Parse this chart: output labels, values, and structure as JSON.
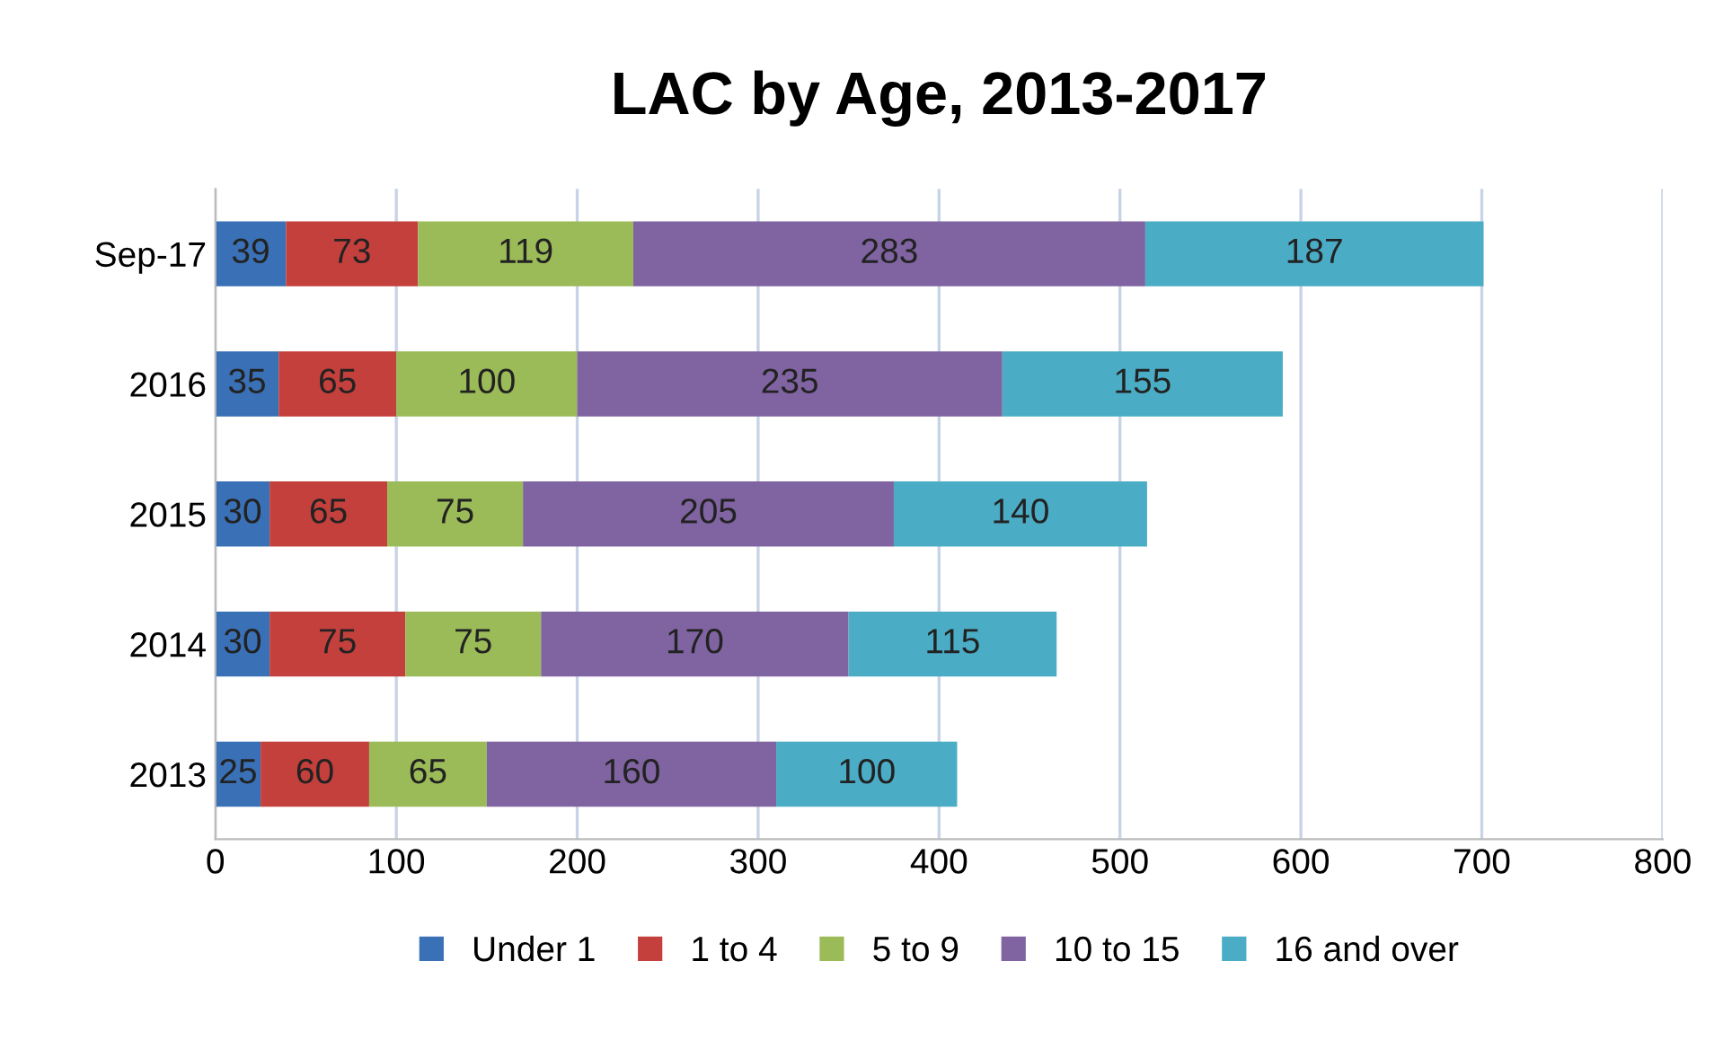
{
  "chart_data": {
    "type": "bar",
    "orientation": "horizontal",
    "stacked": true,
    "title": "LAC by Age, 2013-2017",
    "categories": [
      "Sep-17",
      "2016",
      "2015",
      "2014",
      "2013"
    ],
    "series": [
      {
        "name": "Under 1",
        "color": "#3a70b5",
        "values": [
          39,
          35,
          30,
          30,
          25
        ]
      },
      {
        "name": "1 to 4",
        "color": "#c4403c",
        "values": [
          73,
          65,
          65,
          75,
          60
        ]
      },
      {
        "name": "5 to 9",
        "color": "#9bbb59",
        "values": [
          119,
          100,
          75,
          75,
          65
        ]
      },
      {
        "name": "10 to 15",
        "color": "#8064a2",
        "values": [
          283,
          235,
          205,
          170,
          160
        ]
      },
      {
        "name": "16 and over",
        "color": "#4bacc6",
        "values": [
          187,
          155,
          140,
          115,
          100
        ]
      }
    ],
    "xlim": [
      0,
      800
    ],
    "xticks": [
      0,
      100,
      200,
      300,
      400,
      500,
      600,
      700,
      800
    ],
    "grid": "x",
    "legend": "bottom",
    "data_labels": true
  }
}
